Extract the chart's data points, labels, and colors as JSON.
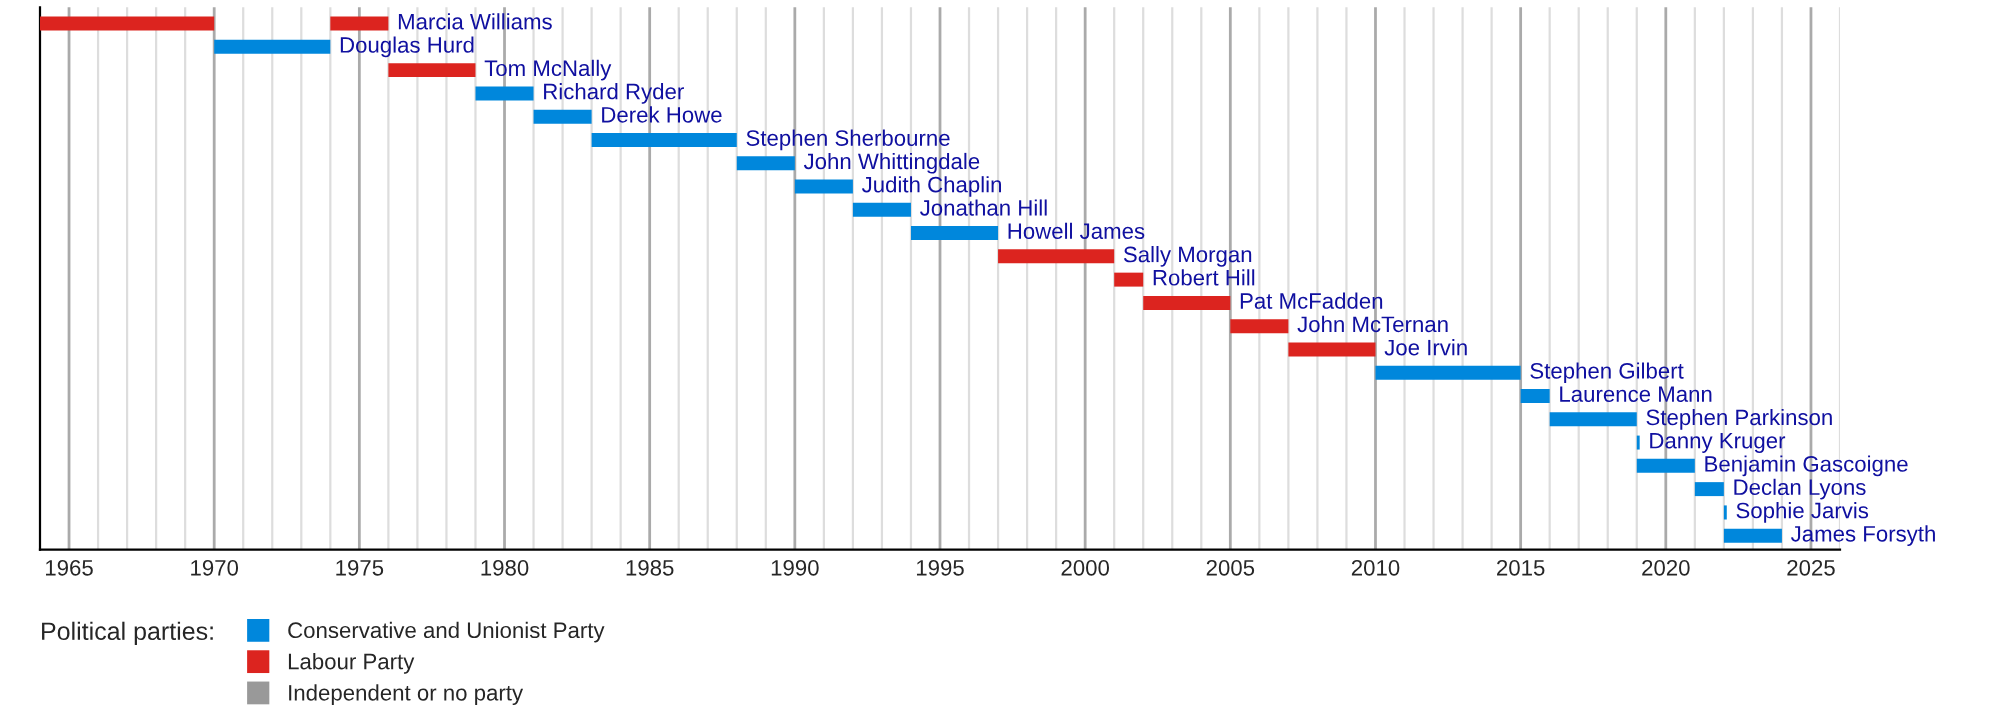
{
  "chart_data": {
    "type": "bar",
    "orientation": "horizontal",
    "legend_title": "Political parties:",
    "legend": "bottom",
    "grid": "x",
    "tick_labels": "x",
    "categories": [
      "Marcia Williams",
      "Douglas Hurd",
      "Tom McNally",
      "Richard Ryder",
      "Derek Howe",
      "Stephen Sherbourne",
      "John Whittingdale",
      "Judith Chaplin",
      "Jonathan Hill",
      "Howell James",
      "Sally Morgan",
      "Robert Hill",
      "Pat McFadden",
      "John McTernan",
      "Joe Irvin",
      "Stephen Gilbert",
      "Laurence Mann",
      "Stephen Parkinson",
      "Danny Kruger",
      "Benjamin Gascoigne",
      "Declan Lyons",
      "Sophie Jarvis",
      "James Forsyth"
    ],
    "series": [
      {
        "name": "Conservative and Unionist Party",
        "color": "#0087dc",
        "base": [
          null,
          1970,
          null,
          1979,
          1981,
          1983,
          1988,
          1990,
          1992,
          1994,
          null,
          null,
          null,
          null,
          null,
          2010,
          2015,
          2016,
          2019,
          2019,
          2021,
          2022,
          2022
        ],
        "values": [
          null,
          4,
          null,
          2,
          2,
          5,
          2,
          2,
          2,
          3,
          null,
          null,
          null,
          null,
          null,
          5,
          1,
          3,
          0.1,
          2,
          1,
          0.1,
          2
        ]
      },
      {
        "name": "Labour Party",
        "color": "#dc241f",
        "base": [
          1964,
          null,
          1976,
          null,
          null,
          null,
          null,
          null,
          null,
          null,
          1997,
          2001,
          2002,
          2005,
          2007,
          null,
          null,
          null,
          null,
          null,
          null,
          null,
          null
        ],
        "values": [
          6,
          null,
          3,
          null,
          null,
          null,
          null,
          null,
          null,
          null,
          4,
          1,
          3,
          2,
          3,
          null,
          null,
          null,
          null,
          null,
          null,
          null,
          null
        ]
      },
      {
        "color": "#dc241f",
        "base": [
          1974,
          null,
          null,
          null,
          null,
          null,
          null,
          null,
          null,
          null,
          null,
          null,
          null,
          null,
          null,
          null,
          null,
          null,
          null,
          null,
          null,
          null,
          null
        ],
        "values": [
          2,
          null,
          null,
          null,
          null,
          null,
          null,
          null,
          null,
          null,
          null,
          null,
          null,
          null,
          null,
          null,
          null,
          null,
          null,
          null,
          null,
          null,
          null
        ]
      },
      {
        "name": "Independent or no party",
        "color": "#999999",
        "base": [
          null,
          null,
          null,
          null,
          null,
          null,
          null,
          null,
          null,
          null,
          null,
          null,
          null,
          null,
          null,
          null,
          null,
          null,
          null,
          null,
          null,
          null,
          null
        ],
        "values": [
          null,
          null,
          null,
          null,
          null,
          null,
          null,
          null,
          null,
          null,
          null,
          null,
          null,
          null,
          null,
          null,
          null,
          null,
          null,
          null,
          null,
          null,
          null
        ]
      }
    ],
    "xlim": [
      1964,
      2026
    ],
    "xticks": [
      1965,
      1970,
      1975,
      1980,
      1985,
      1990,
      1995,
      2000,
      2005,
      2010,
      2015,
      2020,
      2025
    ]
  }
}
